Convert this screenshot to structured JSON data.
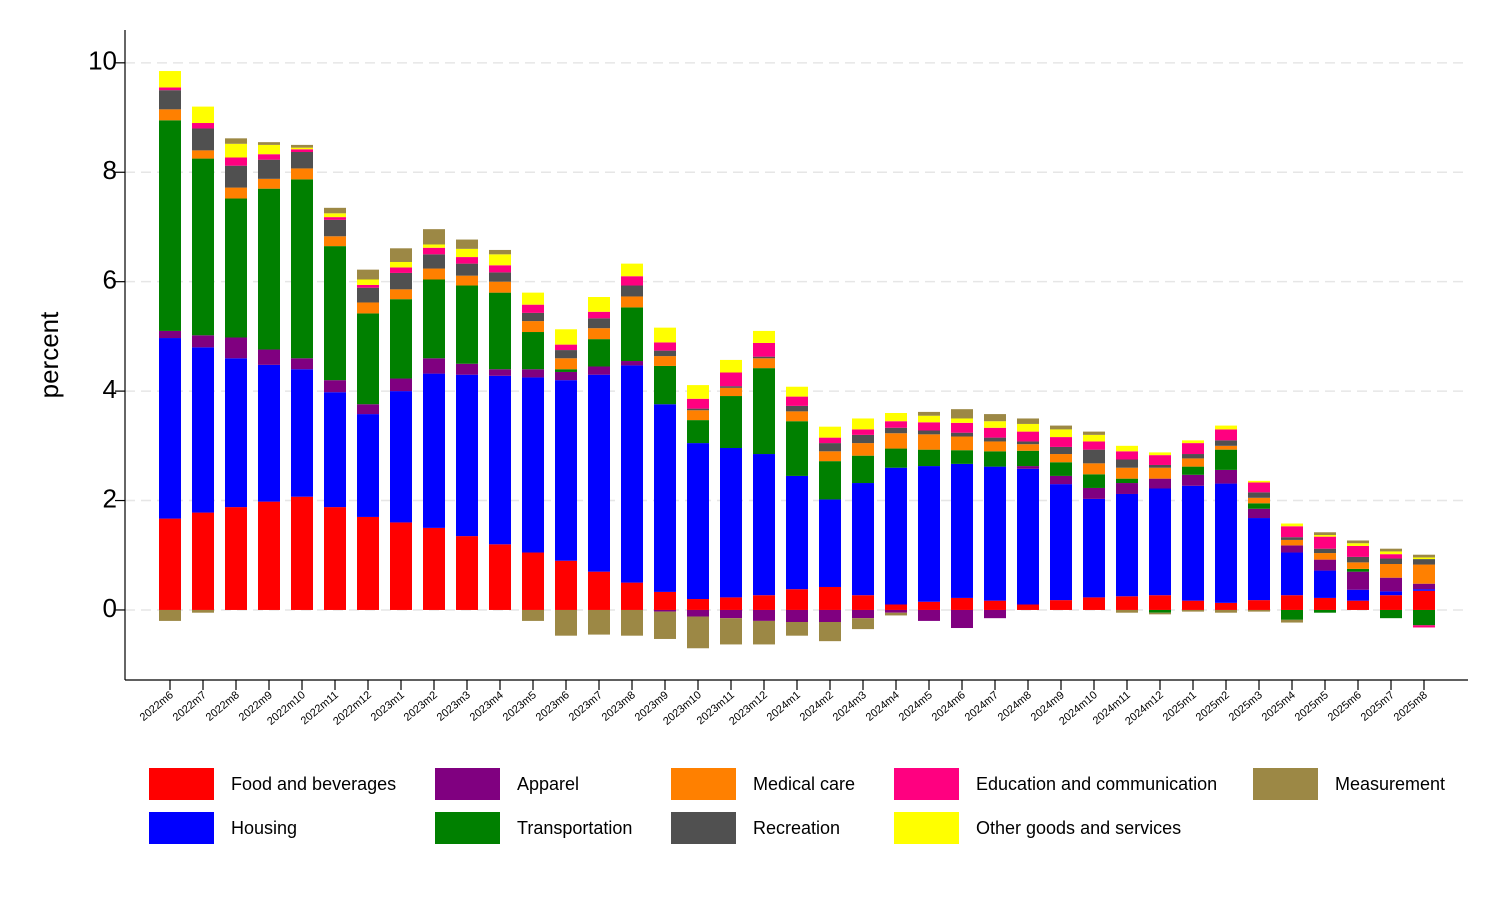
{
  "chart_data": {
    "type": "stacked-bar",
    "ylabel": "percent",
    "categories": [
      "2022m6",
      "2022m7",
      "2022m8",
      "2022m9",
      "2022m10",
      "2022m11",
      "2022m12",
      "2023m1",
      "2023m2",
      "2023m3",
      "2023m4",
      "2023m5",
      "2023m6",
      "2023m7",
      "2023m8",
      "2023m9",
      "2023m10",
      "2023m11",
      "2023m12",
      "2024m1",
      "2024m2",
      "2024m3",
      "2024m4",
      "2024m5",
      "2024m6",
      "2024m7",
      "2024m8",
      "2024m9",
      "2024m10",
      "2024m11",
      "2024m12",
      "2025m1",
      "2025m2",
      "2025m3",
      "2025m4",
      "2025m5",
      "2025m6",
      "2025m7",
      "2025m8"
    ],
    "series": [
      {
        "name": "Food and beverages",
        "color": "#ff0000",
        "values": [
          1.67,
          1.78,
          1.88,
          1.98,
          2.07,
          1.88,
          1.7,
          1.6,
          1.5,
          1.35,
          1.2,
          1.05,
          0.9,
          0.7,
          0.5,
          0.33,
          0.2,
          0.23,
          0.27,
          0.38,
          0.42,
          0.27,
          0.1,
          0.15,
          0.22,
          0.17,
          0.1,
          0.18,
          0.23,
          0.25,
          0.27,
          0.17,
          0.13,
          0.18,
          0.27,
          0.22,
          0.17,
          0.27,
          0.35
        ]
      },
      {
        "name": "Housing",
        "color": "#0000ff",
        "values": [
          3.3,
          3.02,
          2.72,
          2.5,
          2.33,
          2.1,
          1.88,
          2.4,
          2.82,
          2.95,
          3.08,
          3.2,
          3.3,
          3.6,
          3.97,
          3.43,
          2.85,
          2.73,
          2.58,
          2.07,
          1.6,
          2.05,
          2.5,
          2.48,
          2.45,
          2.45,
          2.48,
          2.12,
          1.8,
          1.87,
          1.95,
          2.1,
          2.18,
          1.5,
          0.78,
          0.5,
          0.2,
          0.07,
          0.03
        ]
      },
      {
        "name": "Apparel",
        "color": "#800080",
        "values": [
          0.13,
          0.22,
          0.38,
          0.28,
          0.2,
          0.22,
          0.18,
          0.23,
          0.28,
          0.2,
          0.12,
          0.15,
          0.15,
          0.15,
          0.08,
          -0.03,
          -0.12,
          -0.15,
          -0.2,
          -0.22,
          -0.22,
          -0.15,
          -0.05,
          -0.2,
          -0.33,
          -0.15,
          0.05,
          0.15,
          0.2,
          0.2,
          0.18,
          0.2,
          0.25,
          0.17,
          0.13,
          0.2,
          0.33,
          0.25,
          0.1
        ]
      },
      {
        "name": "Transportation",
        "color": "#008000",
        "values": [
          3.85,
          3.23,
          2.54,
          2.94,
          3.27,
          2.45,
          1.66,
          1.45,
          1.44,
          1.43,
          1.4,
          0.68,
          0.05,
          0.5,
          0.98,
          0.7,
          0.42,
          0.95,
          1.57,
          1.0,
          0.7,
          0.5,
          0.35,
          0.3,
          0.25,
          0.28,
          0.28,
          0.25,
          0.25,
          0.08,
          -0.05,
          0.15,
          0.37,
          0.1,
          -0.18,
          -0.05,
          0.05,
          -0.15,
          -0.28
        ]
      },
      {
        "name": "Medical care",
        "color": "#ff8000",
        "values": [
          0.2,
          0.15,
          0.2,
          0.18,
          0.2,
          0.18,
          0.2,
          0.18,
          0.2,
          0.18,
          0.2,
          0.2,
          0.2,
          0.2,
          0.2,
          0.18,
          0.18,
          0.15,
          0.18,
          0.18,
          0.18,
          0.23,
          0.28,
          0.28,
          0.25,
          0.18,
          0.12,
          0.15,
          0.2,
          0.2,
          0.2,
          0.15,
          0.07,
          0.1,
          0.1,
          0.12,
          0.12,
          0.25,
          0.35
        ]
      },
      {
        "name": "Recreation",
        "color": "#505050",
        "values": [
          0.35,
          0.4,
          0.4,
          0.35,
          0.3,
          0.3,
          0.27,
          0.3,
          0.26,
          0.22,
          0.17,
          0.15,
          0.15,
          0.18,
          0.2,
          0.1,
          0.03,
          0.03,
          0.03,
          0.1,
          0.15,
          0.15,
          0.1,
          0.07,
          0.07,
          0.07,
          0.05,
          0.13,
          0.25,
          0.15,
          0.05,
          0.08,
          0.1,
          0.1,
          0.05,
          0.08,
          0.1,
          0.1,
          0.1
        ]
      },
      {
        "name": "Education and communication",
        "color": "#ff0080",
        "values": [
          0.05,
          0.1,
          0.15,
          0.1,
          0.05,
          0.05,
          0.05,
          0.1,
          0.12,
          0.12,
          0.13,
          0.15,
          0.1,
          0.12,
          0.17,
          0.15,
          0.18,
          0.25,
          0.25,
          0.17,
          0.1,
          0.1,
          0.12,
          0.15,
          0.18,
          0.18,
          0.18,
          0.18,
          0.15,
          0.15,
          0.18,
          0.2,
          0.2,
          0.18,
          0.2,
          0.22,
          0.2,
          0.08,
          -0.04
        ]
      },
      {
        "name": "Other goods and services",
        "color": "#ffff00",
        "values": [
          0.3,
          0.3,
          0.25,
          0.17,
          0.03,
          0.07,
          0.1,
          0.1,
          0.06,
          0.15,
          0.2,
          0.22,
          0.28,
          0.27,
          0.23,
          0.27,
          0.25,
          0.23,
          0.22,
          0.18,
          0.2,
          0.2,
          0.15,
          0.12,
          0.08,
          0.12,
          0.14,
          0.14,
          0.12,
          0.1,
          0.05,
          0.05,
          0.07,
          0.03,
          0.05,
          0.03,
          0.05,
          0.05,
          0.03
        ]
      },
      {
        "name": "Measurement",
        "color": "#9c8845",
        "values": [
          -0.2,
          -0.05,
          0.1,
          0.05,
          0.05,
          0.1,
          0.18,
          0.25,
          0.28,
          0.17,
          0.08,
          -0.2,
          -0.47,
          -0.45,
          -0.47,
          -0.5,
          -0.58,
          -0.48,
          -0.43,
          -0.25,
          -0.35,
          -0.2,
          -0.05,
          0.07,
          0.17,
          0.13,
          0.1,
          0.07,
          0.06,
          -0.05,
          -0.03,
          -0.03,
          -0.05,
          -0.03,
          -0.05,
          0.05,
          0.05,
          0.05,
          0.05
        ]
      }
    ],
    "ylim": [
      -1.28,
      10.6
    ],
    "yticks": [
      0,
      2,
      4,
      6,
      8,
      10
    ],
    "grid": true
  }
}
